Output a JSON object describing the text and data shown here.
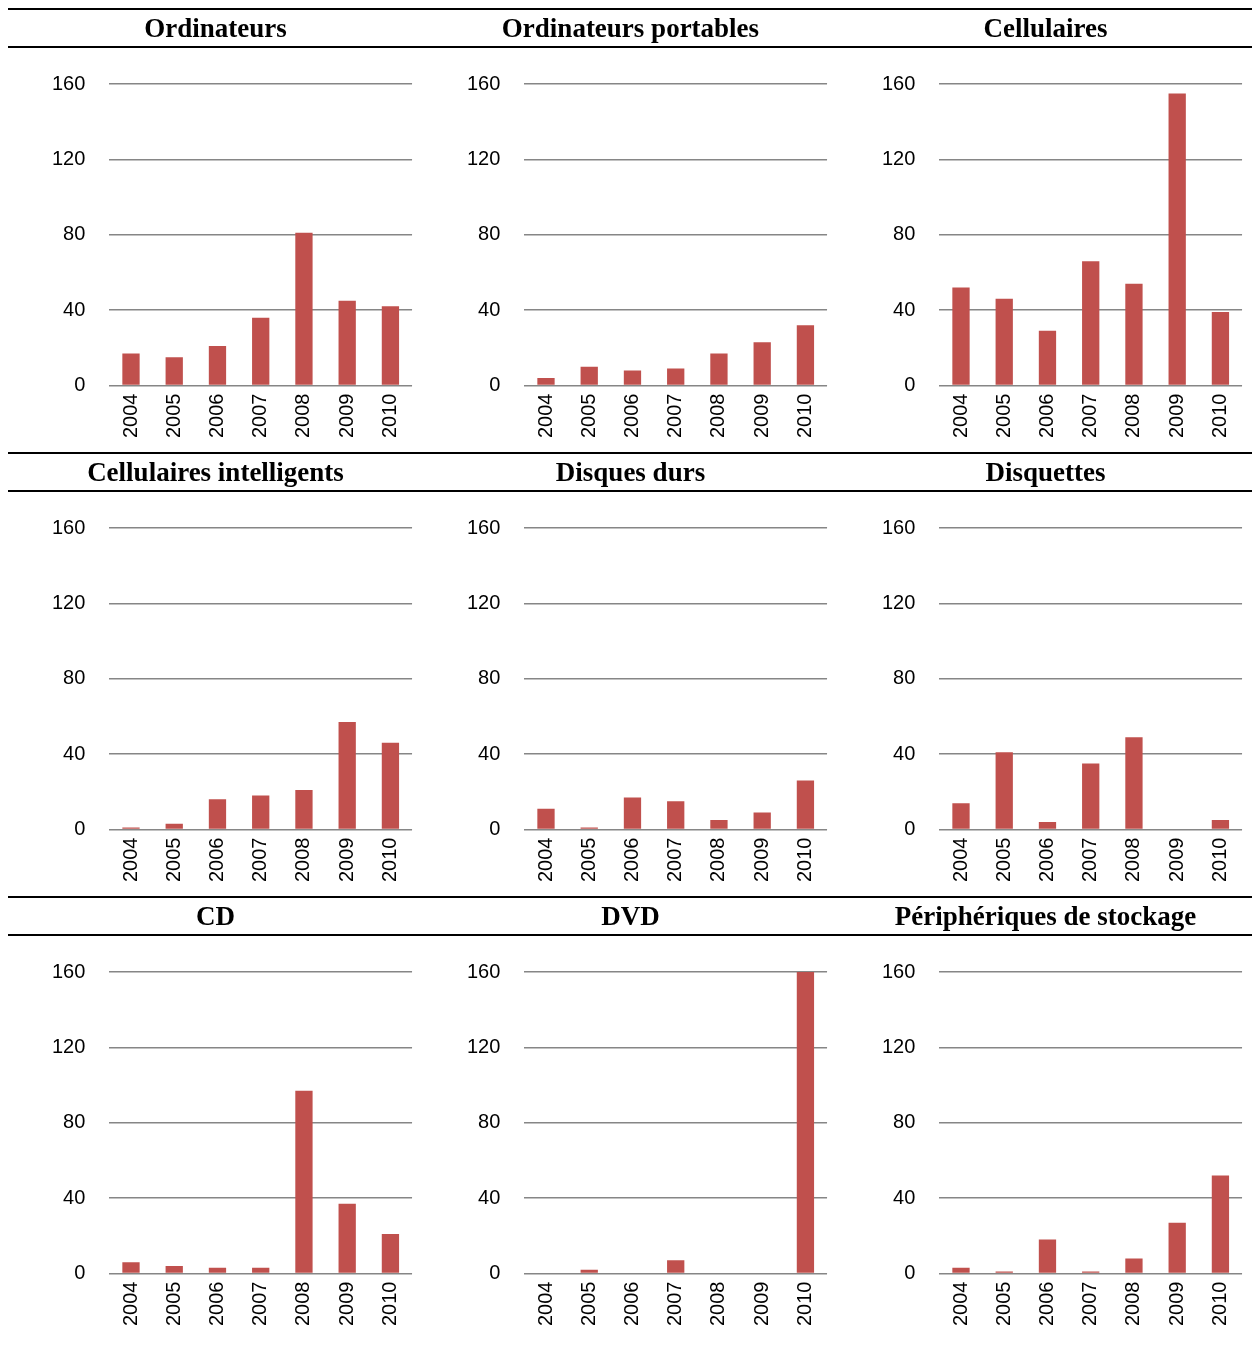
{
  "chart_data": [
    {
      "type": "bar",
      "title": "Ordinateurs",
      "categories": [
        "2004",
        "2005",
        "2006",
        "2007",
        "2008",
        "2009",
        "2010"
      ],
      "values": [
        17,
        15,
        21,
        36,
        81,
        45,
        42
      ],
      "color": "#c0504d",
      "ylim": [
        0,
        160
      ],
      "yticks": [
        0,
        40,
        80,
        120,
        160
      ],
      "grid": "y"
    },
    {
      "type": "bar",
      "title": "Ordinateurs portables",
      "categories": [
        "2004",
        "2005",
        "2006",
        "2007",
        "2008",
        "2009",
        "2010"
      ],
      "values": [
        4,
        10,
        8,
        9,
        17,
        23,
        32
      ],
      "color": "#c0504d",
      "ylim": [
        0,
        160
      ],
      "yticks": [
        0,
        40,
        80,
        120,
        160
      ],
      "grid": "y"
    },
    {
      "type": "bar",
      "title": "Cellulaires",
      "categories": [
        "2004",
        "2005",
        "2006",
        "2007",
        "2008",
        "2009",
        "2010"
      ],
      "values": [
        52,
        46,
        29,
        66,
        54,
        155,
        39
      ],
      "color": "#c0504d",
      "ylim": [
        0,
        160
      ],
      "yticks": [
        0,
        40,
        80,
        120,
        160
      ],
      "grid": "y"
    },
    {
      "type": "bar",
      "title": "Cellulaires intelligents",
      "categories": [
        "2004",
        "2005",
        "2006",
        "2007",
        "2008",
        "2009",
        "2010"
      ],
      "values": [
        1,
        3,
        16,
        18,
        21,
        57,
        46
      ],
      "color": "#c0504d",
      "ylim": [
        0,
        160
      ],
      "yticks": [
        0,
        40,
        80,
        120,
        160
      ],
      "grid": "y"
    },
    {
      "type": "bar",
      "title": "Disques durs",
      "categories": [
        "2004",
        "2005",
        "2006",
        "2007",
        "2008",
        "2009",
        "2010"
      ],
      "values": [
        11,
        1,
        17,
        15,
        5,
        9,
        26
      ],
      "color": "#c0504d",
      "ylim": [
        0,
        160
      ],
      "yticks": [
        0,
        40,
        80,
        120,
        160
      ],
      "grid": "y"
    },
    {
      "type": "bar",
      "title": "Disquettes",
      "categories": [
        "2004",
        "2005",
        "2006",
        "2007",
        "2008",
        "2009",
        "2010"
      ],
      "values": [
        14,
        41,
        4,
        35,
        49,
        0,
        5
      ],
      "color": "#c0504d",
      "ylim": [
        0,
        160
      ],
      "yticks": [
        0,
        40,
        80,
        120,
        160
      ],
      "grid": "y"
    },
    {
      "type": "bar",
      "title": "CD",
      "categories": [
        "2004",
        "2005",
        "2006",
        "2007",
        "2008",
        "2009",
        "2010"
      ],
      "values": [
        6,
        4,
        3,
        3,
        97,
        37,
        21
      ],
      "color": "#c0504d",
      "ylim": [
        0,
        160
      ],
      "yticks": [
        0,
        40,
        80,
        120,
        160
      ],
      "grid": "y"
    },
    {
      "type": "bar",
      "title": "DVD",
      "categories": [
        "2004",
        "2005",
        "2006",
        "2007",
        "2008",
        "2009",
        "2010"
      ],
      "values": [
        0,
        2,
        0,
        7,
        0,
        0,
        160
      ],
      "color": "#c0504d",
      "ylim": [
        0,
        160
      ],
      "yticks": [
        0,
        40,
        80,
        120,
        160
      ],
      "grid": "y"
    },
    {
      "type": "bar",
      "title": "Périphériques de stockage",
      "categories": [
        "2004",
        "2005",
        "2006",
        "2007",
        "2008",
        "2009",
        "2010"
      ],
      "values": [
        3,
        1,
        18,
        1,
        8,
        27,
        52
      ],
      "color": "#c0504d",
      "ylim": [
        0,
        160
      ],
      "yticks": [
        0,
        40,
        80,
        120,
        160
      ],
      "grid": "y"
    }
  ]
}
